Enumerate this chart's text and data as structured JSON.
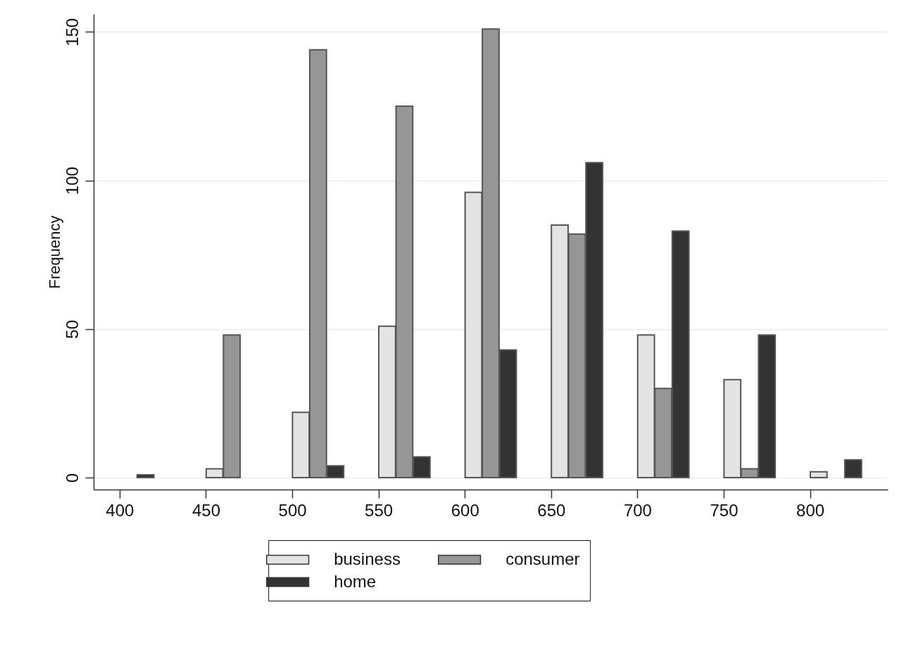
{
  "chart_data": {
    "type": "bar",
    "ylabel": "Frequency",
    "xlim": [
      387,
      843
    ],
    "xticks": [
      400,
      450,
      500,
      550,
      600,
      650,
      700,
      750,
      800
    ],
    "ylim": [
      -4,
      156
    ],
    "yticks": [
      0,
      50,
      100,
      150
    ],
    "grid": "y",
    "legend": "bottom",
    "series": [
      {
        "name": "business",
        "color": "#e4e4e4",
        "x": [
          455,
          505,
          555,
          605,
          655,
          705,
          755,
          805
        ],
        "values": [
          3,
          22,
          51,
          96,
          85,
          48,
          33,
          2
        ]
      },
      {
        "name": "consumer",
        "color": "#969696",
        "x": [
          465,
          515,
          565,
          615,
          665,
          715,
          765
        ],
        "values": [
          48,
          144,
          125,
          151,
          82,
          30,
          3
        ]
      },
      {
        "name": "home",
        "color": "#333333",
        "x": [
          415,
          525,
          575,
          625,
          675,
          725,
          775,
          825
        ],
        "values": [
          1,
          4,
          7,
          43,
          106,
          83,
          48,
          6
        ]
      }
    ]
  }
}
